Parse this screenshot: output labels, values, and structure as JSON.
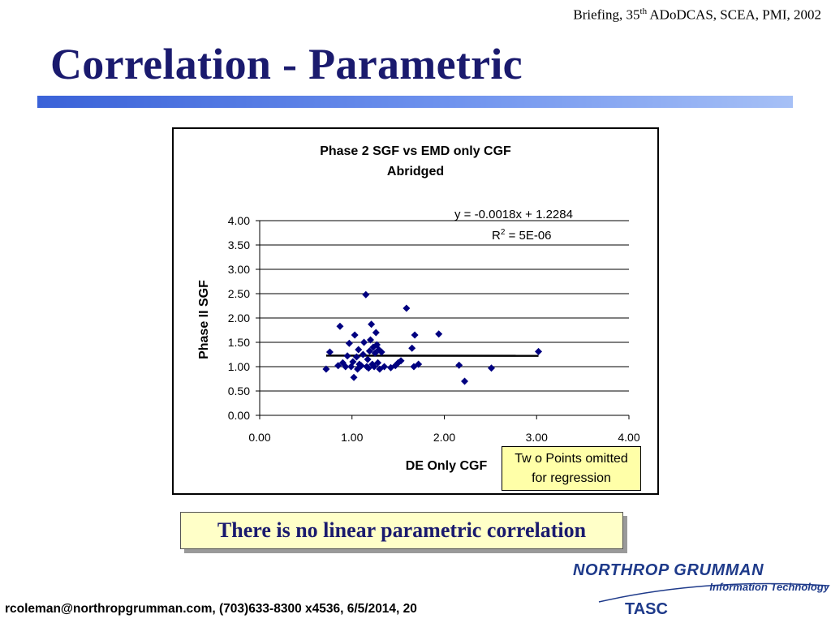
{
  "header": {
    "briefing_prefix": "Briefing, 35",
    "briefing_sup": "th",
    "briefing_suffix": " ADoDCAS, SCEA, PMI, 2002"
  },
  "slide": {
    "title": "Correlation - Parametric",
    "note_line1": "Tw o Points omitted",
    "note_line2": "for regression",
    "conclusion": "There is no linear parametric correlation"
  },
  "footer": {
    "contact": "rcoleman@northropgrumman.com, (703)633-8300 x4536, 6/5/2014, 20"
  },
  "logo": {
    "company": "NORTHROP GRUMMAN",
    "division": "Information Technology",
    "unit": "TASC"
  },
  "colors": {
    "title": "#1a1a6e",
    "marker": "#000080",
    "note_bg": "#ffffa8",
    "conclusion_bg": "#ffffc8",
    "bar_start": "#3a62d8",
    "logo": "#1e3a8a"
  },
  "chart_data": {
    "type": "scatter",
    "title_line1": "Phase 2 SGF vs EMD only CGF",
    "title_line2": "Abridged",
    "xlabel": "DE Only CGF",
    "ylabel": "Phase II SGF",
    "xlim": [
      0,
      4
    ],
    "ylim": [
      0,
      4
    ],
    "x_ticks": [
      "0.00",
      "1.00",
      "2.00",
      "3.00",
      "4.00"
    ],
    "y_ticks": [
      "0.00",
      "0.50",
      "1.00",
      "1.50",
      "2.00",
      "2.50",
      "3.00",
      "3.50",
      "4.00"
    ],
    "grid": "horizontal",
    "equation": "y = -0.0018x + 1.2284",
    "r2_label": "R",
    "r2_sup": "2",
    "r2_value": " = 5E-06",
    "trendline": {
      "slope": -0.0018,
      "intercept": 1.2284,
      "x_range": [
        0.72,
        3.02
      ]
    },
    "points": [
      [
        0.72,
        0.95
      ],
      [
        0.76,
        1.3
      ],
      [
        0.85,
        1.02
      ],
      [
        0.87,
        1.83
      ],
      [
        0.9,
        1.08
      ],
      [
        0.93,
        1.0
      ],
      [
        0.95,
        1.22
      ],
      [
        0.97,
        1.48
      ],
      [
        0.99,
        1.0
      ],
      [
        1.01,
        1.1
      ],
      [
        1.02,
        0.78
      ],
      [
        1.03,
        1.65
      ],
      [
        1.05,
        1.2
      ],
      [
        1.06,
        0.95
      ],
      [
        1.07,
        1.35
      ],
      [
        1.08,
        1.05
      ],
      [
        1.1,
        1.02
      ],
      [
        1.12,
        1.25
      ],
      [
        1.13,
        1.5
      ],
      [
        1.15,
        2.48
      ],
      [
        1.16,
        1.0
      ],
      [
        1.17,
        1.15
      ],
      [
        1.18,
        0.97
      ],
      [
        1.19,
        1.32
      ],
      [
        1.2,
        1.55
      ],
      [
        1.21,
        1.87
      ],
      [
        1.22,
        1.05
      ],
      [
        1.23,
        1.4
      ],
      [
        1.24,
        1.0
      ],
      [
        1.25,
        1.28
      ],
      [
        1.26,
        1.7
      ],
      [
        1.27,
        1.45
      ],
      [
        1.28,
        1.08
      ],
      [
        1.29,
        1.35
      ],
      [
        1.3,
        0.95
      ],
      [
        1.32,
        1.3
      ],
      [
        1.35,
        1.0
      ],
      [
        1.42,
        0.98
      ],
      [
        1.47,
        1.02
      ],
      [
        1.5,
        1.08
      ],
      [
        1.53,
        1.12
      ],
      [
        1.59,
        2.2
      ],
      [
        1.65,
        1.38
      ],
      [
        1.67,
        1.0
      ],
      [
        1.68,
        1.65
      ],
      [
        1.72,
        1.05
      ],
      [
        1.94,
        1.67
      ],
      [
        2.16,
        1.03
      ],
      [
        2.22,
        0.7
      ],
      [
        2.51,
        0.97
      ],
      [
        3.02,
        1.31
      ]
    ]
  }
}
